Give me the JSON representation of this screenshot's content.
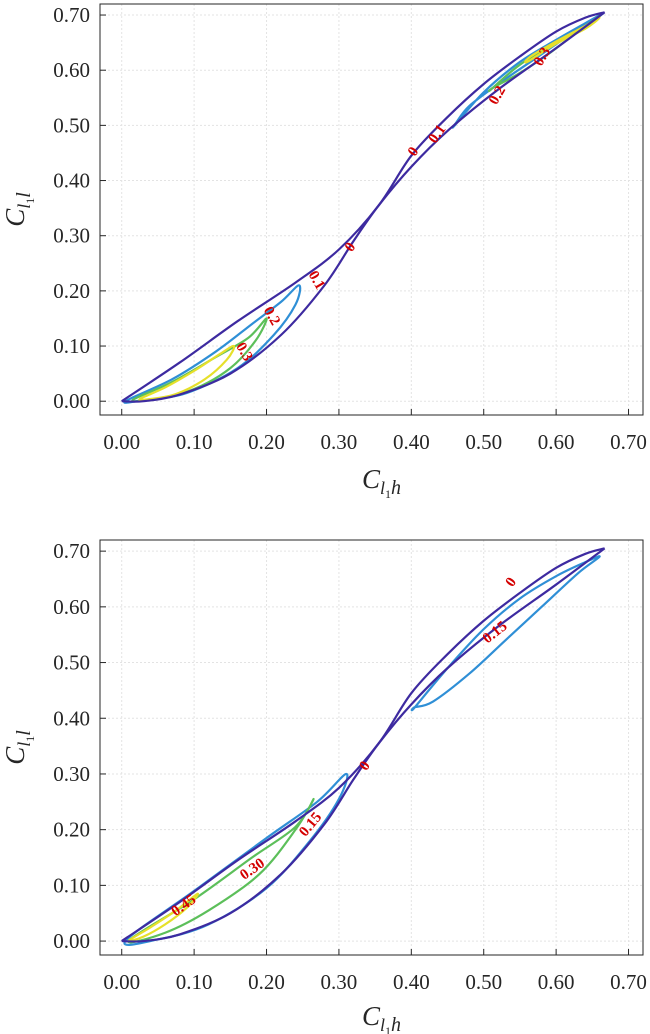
{
  "chart_data": [
    {
      "type": "contour",
      "title": "",
      "xlabel": {
        "main": "C",
        "sub": "l",
        "subsub": "1",
        "tail": "h"
      },
      "ylabel": {
        "main": "C",
        "sub": "l",
        "subsub": "1",
        "tail": "l"
      },
      "xlim": [
        -0.03,
        0.72
      ],
      "ylim": [
        -0.025,
        0.72
      ],
      "xticks": [
        "0.00",
        "0.10",
        "0.20",
        "0.30",
        "0.40",
        "0.50",
        "0.60",
        "0.70"
      ],
      "yticks": [
        "0.00",
        "0.10",
        "0.20",
        "0.30",
        "0.40",
        "0.50",
        "0.60",
        "0.70"
      ],
      "grid": true,
      "boundary": {
        "color": "#3d2aa0",
        "upper": [
          [
            0.0,
            0.0
          ],
          [
            0.08,
            0.07
          ],
          [
            0.16,
            0.145
          ],
          [
            0.24,
            0.215
          ],
          [
            0.3,
            0.275
          ],
          [
            0.355,
            0.355
          ],
          [
            0.4,
            0.445
          ],
          [
            0.45,
            0.515
          ],
          [
            0.5,
            0.575
          ],
          [
            0.55,
            0.625
          ],
          [
            0.6,
            0.67
          ],
          [
            0.64,
            0.695
          ],
          [
            0.667,
            0.705
          ]
        ],
        "lower": [
          [
            0.667,
            0.705
          ],
          [
            0.6,
            0.64
          ],
          [
            0.52,
            0.565
          ],
          [
            0.45,
            0.49
          ],
          [
            0.4,
            0.425
          ],
          [
            0.355,
            0.355
          ],
          [
            0.32,
            0.29
          ],
          [
            0.28,
            0.21
          ],
          [
            0.22,
            0.12
          ],
          [
            0.15,
            0.05
          ],
          [
            0.08,
            0.012
          ],
          [
            0.03,
            0.0
          ],
          [
            0.0,
            0.0
          ]
        ]
      },
      "contours": [
        {
          "level": "0.1",
          "color": "#2f8fd6",
          "points": [
            [
              0.005,
              0.0
            ],
            [
              0.07,
              0.04
            ],
            [
              0.13,
              0.09
            ],
            [
              0.18,
              0.14
            ],
            [
              0.22,
              0.18
            ],
            [
              0.245,
              0.21
            ],
            [
              0.24,
              0.175
            ],
            [
              0.21,
              0.12
            ],
            [
              0.16,
              0.06
            ],
            [
              0.09,
              0.015
            ],
            [
              0.03,
              0.002
            ]
          ]
        },
        {
          "level": "0.2",
          "color": "#5cbf5a",
          "points": [
            [
              0.015,
              0.002
            ],
            [
              0.07,
              0.035
            ],
            [
              0.13,
              0.08
            ],
            [
              0.175,
              0.115
            ],
            [
              0.2,
              0.15
            ],
            [
              0.185,
              0.11
            ],
            [
              0.15,
              0.06
            ],
            [
              0.1,
              0.022
            ],
            [
              0.05,
              0.005
            ]
          ]
        },
        {
          "level": "0.3",
          "color": "#e6e02a",
          "points": [
            [
              0.025,
              0.004
            ],
            [
              0.06,
              0.025
            ],
            [
              0.1,
              0.055
            ],
            [
              0.135,
              0.085
            ],
            [
              0.155,
              0.1
            ],
            [
              0.145,
              0.075
            ],
            [
              0.115,
              0.04
            ],
            [
              0.075,
              0.013
            ],
            [
              0.04,
              0.004
            ]
          ]
        },
        {
          "level": "0.1",
          "color": "#2f8fd6",
          "points": [
            [
              0.46,
              0.5
            ],
            [
              0.5,
              0.56
            ],
            [
              0.55,
              0.615
            ],
            [
              0.6,
              0.655
            ],
            [
              0.64,
              0.685
            ],
            [
              0.665,
              0.703
            ],
            [
              0.62,
              0.665
            ],
            [
              0.57,
              0.62
            ],
            [
              0.52,
              0.575
            ],
            [
              0.48,
              0.535
            ],
            [
              0.462,
              0.505
            ]
          ]
        },
        {
          "level": "0.2",
          "color": "#5cbf5a",
          "points": [
            [
              0.51,
              0.565
            ],
            [
              0.55,
              0.61
            ],
            [
              0.6,
              0.65
            ],
            [
              0.64,
              0.68
            ],
            [
              0.662,
              0.7
            ],
            [
              0.63,
              0.67
            ],
            [
              0.59,
              0.63
            ],
            [
              0.55,
              0.595
            ],
            [
              0.515,
              0.57
            ]
          ]
        },
        {
          "level": "0.3",
          "color": "#e6e02a",
          "points": [
            [
              0.56,
              0.615
            ],
            [
              0.6,
              0.648
            ],
            [
              0.64,
              0.675
            ],
            [
              0.66,
              0.695
            ],
            [
              0.64,
              0.68
            ],
            [
              0.6,
              0.652
            ],
            [
              0.565,
              0.625
            ]
          ]
        }
      ],
      "labels": [
        {
          "text": "0",
          "x": 0.402,
          "y": 0.453,
          "rot": -55
        },
        {
          "text": "0.1",
          "x": 0.435,
          "y": 0.485,
          "rot": -55
        },
        {
          "text": "0",
          "x": 0.315,
          "y": 0.28,
          "rot": -55
        },
        {
          "text": "0.1",
          "x": 0.27,
          "y": 0.22,
          "rot": 60
        },
        {
          "text": "0.2",
          "x": 0.208,
          "y": 0.155,
          "rot": 60
        },
        {
          "text": "0.3",
          "x": 0.17,
          "y": 0.09,
          "rot": 60
        },
        {
          "text": "0.2",
          "x": 0.518,
          "y": 0.555,
          "rot": -60
        },
        {
          "text": "0.3",
          "x": 0.58,
          "y": 0.625,
          "rot": -60
        }
      ]
    },
    {
      "type": "contour",
      "title": "",
      "xlabel": {
        "main": "C",
        "sub": "l",
        "subsub": "1",
        "tail": "h"
      },
      "ylabel": {
        "main": "C",
        "sub": "l",
        "subsub": "1",
        "tail": "l"
      },
      "xlim": [
        -0.03,
        0.72
      ],
      "ylim": [
        -0.025,
        0.72
      ],
      "xticks": [
        "0.00",
        "0.10",
        "0.20",
        "0.30",
        "0.40",
        "0.50",
        "0.60",
        "0.70"
      ],
      "yticks": [
        "0.00",
        "0.10",
        "0.20",
        "0.30",
        "0.40",
        "0.50",
        "0.60",
        "0.70"
      ],
      "grid": true,
      "boundary": {
        "color": "#3d2aa0",
        "upper": [
          [
            0.0,
            0.0
          ],
          [
            0.08,
            0.07
          ],
          [
            0.16,
            0.145
          ],
          [
            0.24,
            0.215
          ],
          [
            0.3,
            0.275
          ],
          [
            0.355,
            0.355
          ],
          [
            0.4,
            0.445
          ],
          [
            0.45,
            0.515
          ],
          [
            0.5,
            0.575
          ],
          [
            0.55,
            0.625
          ],
          [
            0.6,
            0.67
          ],
          [
            0.64,
            0.695
          ],
          [
            0.667,
            0.705
          ]
        ],
        "lower": [
          [
            0.667,
            0.705
          ],
          [
            0.6,
            0.64
          ],
          [
            0.52,
            0.565
          ],
          [
            0.45,
            0.49
          ],
          [
            0.4,
            0.425
          ],
          [
            0.355,
            0.355
          ],
          [
            0.32,
            0.29
          ],
          [
            0.28,
            0.21
          ],
          [
            0.22,
            0.12
          ],
          [
            0.15,
            0.05
          ],
          [
            0.08,
            0.012
          ],
          [
            0.03,
            0.0
          ],
          [
            0.0,
            0.0
          ]
        ]
      },
      "contours": [
        {
          "level": "0.15",
          "color": "#2f8fd6",
          "points": [
            [
              0.005,
              0.0
            ],
            [
              0.1,
              0.09
            ],
            [
              0.2,
              0.185
            ],
            [
              0.27,
              0.25
            ],
            [
              0.31,
              0.3
            ],
            [
              0.3,
              0.255
            ],
            [
              0.26,
              0.18
            ],
            [
              0.2,
              0.095
            ],
            [
              0.12,
              0.03
            ],
            [
              0.05,
              0.003
            ]
          ]
        },
        {
          "level": "0.30",
          "color": "#5cbf5a",
          "points": [
            [
              0.01,
              0.001
            ],
            [
              0.1,
              0.075
            ],
            [
              0.18,
              0.15
            ],
            [
              0.24,
              0.205
            ],
            [
              0.265,
              0.255
            ],
            [
              0.24,
              0.2
            ],
            [
              0.19,
              0.12
            ],
            [
              0.12,
              0.055
            ],
            [
              0.06,
              0.015
            ]
          ]
        },
        {
          "level": "0.45",
          "color": "#e6e02a",
          "points": [
            [
              0.01,
              0.001
            ],
            [
              0.04,
              0.025
            ],
            [
              0.075,
              0.055
            ],
            [
              0.105,
              0.085
            ],
            [
              0.09,
              0.06
            ],
            [
              0.06,
              0.03
            ],
            [
              0.03,
              0.008
            ]
          ]
        },
        {
          "level": "0.15",
          "color": "#2f8fd6",
          "points": [
            [
              0.405,
              0.42
            ],
            [
              0.45,
              0.49
            ],
            [
              0.5,
              0.56
            ],
            [
              0.55,
              0.615
            ],
            [
              0.6,
              0.655
            ],
            [
              0.64,
              0.68
            ],
            [
              0.66,
              0.69
            ],
            [
              0.63,
              0.66
            ],
            [
              0.58,
              0.6
            ],
            [
              0.53,
              0.54
            ],
            [
              0.48,
              0.48
            ],
            [
              0.43,
              0.43
            ],
            [
              0.405,
              0.42
            ]
          ]
        }
      ],
      "labels": [
        {
          "text": "0",
          "x": 0.537,
          "y": 0.645,
          "rot": -55
        },
        {
          "text": "0.15",
          "x": 0.515,
          "y": 0.555,
          "rot": -38
        },
        {
          "text": "0",
          "x": 0.335,
          "y": 0.315,
          "rot": -55
        },
        {
          "text": "0.15",
          "x": 0.26,
          "y": 0.21,
          "rot": -50
        },
        {
          "text": "0.30",
          "x": 0.18,
          "y": 0.13,
          "rot": -35
        },
        {
          "text": "0.45",
          "x": 0.085,
          "y": 0.065,
          "rot": -35
        }
      ]
    }
  ]
}
